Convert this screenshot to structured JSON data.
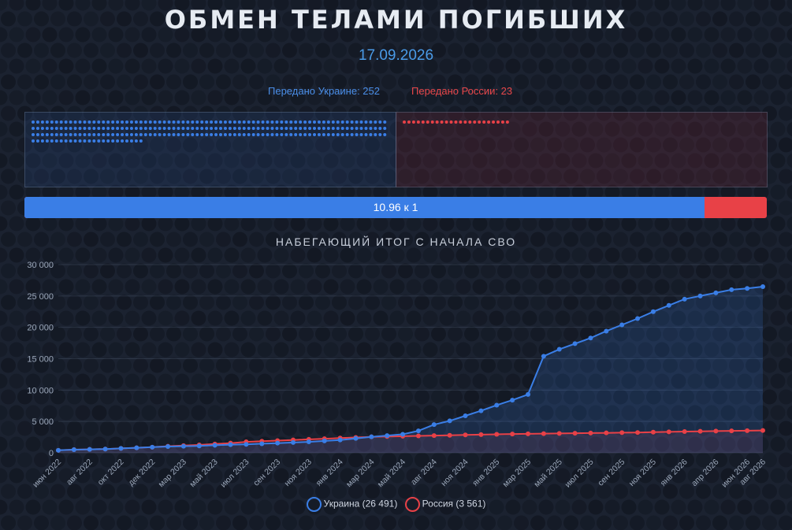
{
  "header": {
    "title": "ОБМЕН ТЕЛАМИ ПОГИБШИХ",
    "date": "17.09.2026",
    "transferred_ukraine_label": "Передано Украине: 252",
    "transferred_russia_label": "Передано России: 23"
  },
  "current_exchange": {
    "ukraine": 252,
    "russia": 23,
    "ratio_label": "10.96 к 1"
  },
  "colors": {
    "ukraine": "#3a7ee6",
    "russia": "#e84147",
    "background": "#1b2230"
  },
  "chart_data": {
    "type": "line",
    "title": "НАБЕГАЮЩИЙ ИТОГ С НАЧАЛА СВО",
    "ylim": [
      0,
      30000
    ],
    "yticks": [
      "0",
      "5 000",
      "10 000",
      "15 000",
      "20 000",
      "25 000",
      "30 000"
    ],
    "x_tick_labels": [
      "июн 2022",
      "авг 2022",
      "окт 2022",
      "дек 2022",
      "мар 2023",
      "май 2023",
      "июл 2023",
      "сен 2023",
      "ноя 2023",
      "янв 2024",
      "мар 2024",
      "май 2024",
      "авг 2024",
      "ноя 2024",
      "янв 2025",
      "мар 2025",
      "май 2025",
      "июл 2025",
      "сен 2025",
      "ноя 2025",
      "янв 2026",
      "апр 2026",
      "июн 2026",
      "авг 2026"
    ],
    "grid": true,
    "legend_position": "bottom",
    "series": [
      {
        "name": "Украина",
        "legend_label": "Украина (26 491)",
        "values": [
          400,
          500,
          550,
          600,
          700,
          800,
          900,
          1000,
          1050,
          1100,
          1200,
          1300,
          1350,
          1450,
          1550,
          1650,
          1750,
          1900,
          2050,
          2300,
          2550,
          2750,
          2950,
          3500,
          4500,
          5100,
          5900,
          6700,
          7600,
          8400,
          9300,
          15400,
          16500,
          17400,
          18300,
          19400,
          20400,
          21400,
          22500,
          23500,
          24500,
          25000,
          25500,
          26000,
          26200,
          26491
        ]
      },
      {
        "name": "Россия",
        "legend_label": "Россия (3 561)",
        "values": [
          400,
          500,
          550,
          600,
          700,
          800,
          900,
          1050,
          1150,
          1250,
          1400,
          1550,
          1750,
          1850,
          1950,
          2050,
          2150,
          2250,
          2350,
          2450,
          2550,
          2600,
          2650,
          2700,
          2750,
          2800,
          2850,
          2900,
          2950,
          3000,
          3030,
          3060,
          3090,
          3120,
          3150,
          3180,
          3210,
          3240,
          3290,
          3340,
          3390,
          3430,
          3470,
          3500,
          3530,
          3561
        ]
      }
    ]
  }
}
